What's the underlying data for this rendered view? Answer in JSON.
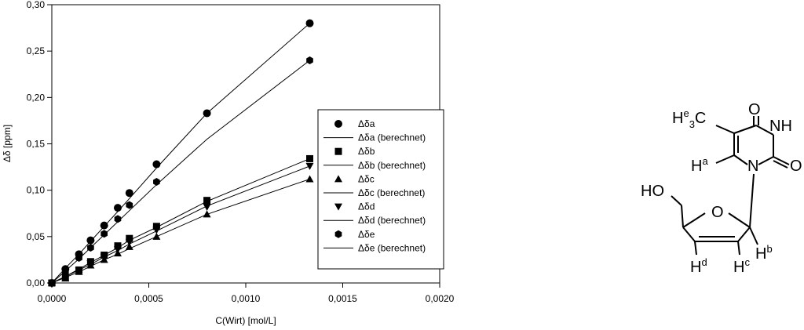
{
  "chart_data": {
    "type": "scatter",
    "xlabel": "C(Wirt) [mol/L]",
    "ylabel": "Δδ [ppm]",
    "xlim": [
      0,
      0.002
    ],
    "ylim": [
      0,
      0.3
    ],
    "xticks": [
      {
        "value": 0,
        "label": "0,0000"
      },
      {
        "value": 0.0005,
        "label": "0,0005"
      },
      {
        "value": 0.001,
        "label": "0,0010"
      },
      {
        "value": 0.0015,
        "label": "0,0015"
      },
      {
        "value": 0.002,
        "label": "0,0020"
      }
    ],
    "yticks": [
      {
        "value": 0,
        "label": "0,00"
      },
      {
        "value": 0.05,
        "label": "0,05"
      },
      {
        "value": 0.1,
        "label": "0,10"
      },
      {
        "value": 0.15,
        "label": "0,15"
      },
      {
        "value": 0.2,
        "label": "0,20"
      },
      {
        "value": 0.25,
        "label": "0,25"
      },
      {
        "value": 0.3,
        "label": "0,30"
      }
    ],
    "x": [
      0,
      7e-05,
      0.00014,
      0.0002,
      0.00027,
      0.00034,
      0.0004,
      0.00054,
      0.0008,
      0.00133
    ],
    "series": [
      {
        "name": "Δδa",
        "color": "#000000",
        "marker": "circle",
        "values": [
          0,
          0.015,
          0.031,
          0.046,
          0.062,
          0.081,
          0.097,
          0.128,
          0.183,
          0.28
        ]
      },
      {
        "name": "Δδa (berechnet)",
        "color": "#000000",
        "marker": "line",
        "values": [
          0,
          0.016,
          0.031,
          0.045,
          0.061,
          0.077,
          0.091,
          0.124,
          0.183,
          0.28
        ]
      },
      {
        "name": "Δδb",
        "color": "#000000",
        "marker": "square",
        "values": [
          0,
          0.006,
          0.014,
          0.023,
          0.03,
          0.04,
          0.048,
          0.061,
          0.089,
          0.134
        ]
      },
      {
        "name": "Δδb (berechnet)",
        "color": "#000000",
        "marker": "line",
        "values": [
          0,
          0.007,
          0.015,
          0.022,
          0.03,
          0.038,
          0.046,
          0.06,
          0.088,
          0.134
        ]
      },
      {
        "name": "Δδc",
        "color": "#000000",
        "marker": "triangle-up",
        "values": [
          0,
          0.005,
          0.012,
          0.019,
          0.025,
          0.032,
          0.039,
          0.05,
          0.074,
          0.112
        ]
      },
      {
        "name": "Δδc (berechnet)",
        "color": "#000000",
        "marker": "line",
        "values": [
          0,
          0.006,
          0.012,
          0.018,
          0.025,
          0.031,
          0.037,
          0.05,
          0.074,
          0.112
        ]
      },
      {
        "name": "Δδd",
        "color": "#000000",
        "marker": "triangle-down",
        "values": [
          0,
          0.006,
          0.013,
          0.021,
          0.028,
          0.036,
          0.044,
          0.057,
          0.082,
          0.126
        ]
      },
      {
        "name": "Δδd (berechnet)",
        "color": "#000000",
        "marker": "line",
        "values": [
          0,
          0.007,
          0.014,
          0.02,
          0.028,
          0.035,
          0.042,
          0.056,
          0.083,
          0.126
        ]
      },
      {
        "name": "Δδe",
        "color": "#000000",
        "marker": "hexagon",
        "values": [
          0,
          0.012,
          0.027,
          0.038,
          0.053,
          0.069,
          0.084,
          0.109,
          null,
          0.24
        ]
      },
      {
        "name": "Δδe (berechnet)",
        "color": "#000000",
        "marker": "line",
        "values": [
          0,
          0.013,
          0.026,
          0.038,
          0.052,
          0.066,
          0.078,
          0.106,
          0.155,
          0.24
        ]
      }
    ]
  },
  "structure": {
    "labels": [
      "O",
      "NH",
      "O",
      "N",
      "H",
      "e",
      "3",
      "C",
      "H",
      "a",
      "HO",
      "O",
      "H",
      "d",
      "H",
      "c",
      "H",
      "b"
    ]
  }
}
